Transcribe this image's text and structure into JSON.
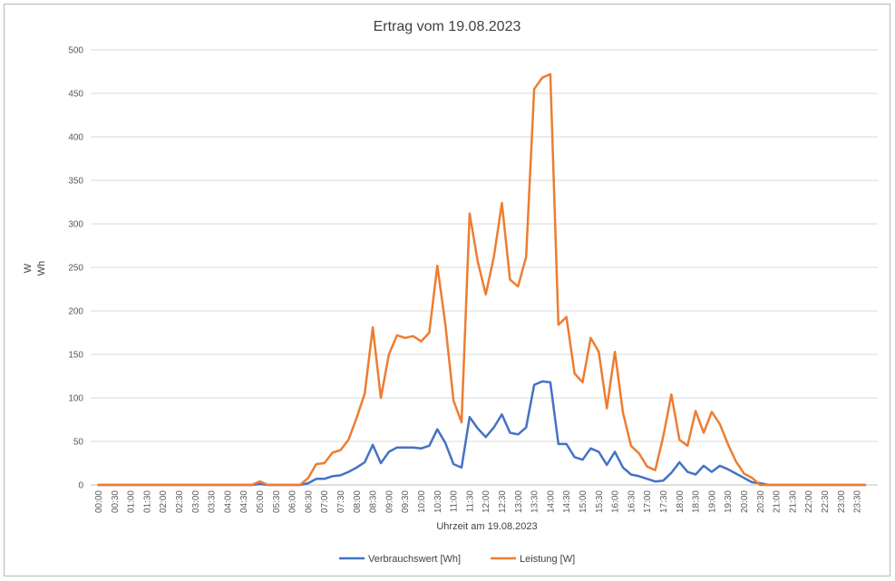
{
  "chart_data": {
    "type": "line",
    "title": "Ertrag vom 19.08.2023",
    "xlabel": "Uhrzeit am 19.08.2023",
    "ylabel_lines": [
      "W",
      "Wh"
    ],
    "ylim": [
      0,
      500
    ],
    "yticks": [
      0,
      50,
      100,
      150,
      200,
      250,
      300,
      350,
      400,
      450,
      500
    ],
    "grid": true,
    "legend_position": "bottom",
    "x_tick_labels": [
      "00:00",
      "00:30",
      "01:00",
      "01:30",
      "02:00",
      "02:30",
      "03:00",
      "03:30",
      "04:00",
      "04:30",
      "05:00",
      "05:30",
      "06:00",
      "06:30",
      "07:00",
      "07:30",
      "08:00",
      "08:30",
      "09:00",
      "09:30",
      "10:00",
      "10:30",
      "11:00",
      "11:30",
      "12:00",
      "12:30",
      "13:00",
      "13:30",
      "14:00",
      "14:30",
      "15:00",
      "15:30",
      "16:00",
      "16:30",
      "17:00",
      "17:30",
      "18:00",
      "18:30",
      "19:00",
      "19:30",
      "20:00",
      "20:30",
      "21:00",
      "21:30",
      "22:00",
      "22:30",
      "23:00",
      "23:30"
    ],
    "x": [
      "00:00",
      "00:15",
      "00:30",
      "00:45",
      "01:00",
      "01:15",
      "01:30",
      "01:45",
      "02:00",
      "02:15",
      "02:30",
      "02:45",
      "03:00",
      "03:15",
      "03:30",
      "03:45",
      "04:00",
      "04:15",
      "04:30",
      "04:45",
      "05:00",
      "05:15",
      "05:30",
      "05:45",
      "06:00",
      "06:15",
      "06:30",
      "06:45",
      "07:00",
      "07:15",
      "07:30",
      "07:45",
      "08:00",
      "08:15",
      "08:30",
      "08:45",
      "09:00",
      "09:15",
      "09:30",
      "09:45",
      "10:00",
      "10:15",
      "10:30",
      "10:45",
      "11:00",
      "11:15",
      "11:30",
      "11:45",
      "12:00",
      "12:15",
      "12:30",
      "12:45",
      "13:00",
      "13:15",
      "13:30",
      "13:45",
      "14:00",
      "14:15",
      "14:30",
      "14:45",
      "15:00",
      "15:15",
      "15:30",
      "15:45",
      "16:00",
      "16:15",
      "16:30",
      "16:45",
      "17:00",
      "17:15",
      "17:30",
      "17:45",
      "18:00",
      "18:15",
      "18:30",
      "18:45",
      "19:00",
      "19:15",
      "19:30",
      "19:45",
      "20:00",
      "20:15",
      "20:30",
      "20:45",
      "21:00",
      "21:15",
      "21:30",
      "21:45",
      "22:00",
      "22:15",
      "22:30",
      "22:45",
      "23:00",
      "23:15",
      "23:30",
      "23:45"
    ],
    "series": [
      {
        "name": "Verbrauchswert [Wh]",
        "color": "#4472c4",
        "values": [
          0,
          0,
          0,
          0,
          0,
          0,
          0,
          0,
          0,
          0,
          0,
          0,
          0,
          0,
          0,
          0,
          0,
          0,
          0,
          0,
          1,
          0,
          0,
          0,
          0,
          0,
          2,
          7,
          7,
          10,
          11,
          15,
          20,
          26,
          46,
          25,
          38,
          43,
          43,
          43,
          42,
          45,
          64,
          48,
          24,
          20,
          78,
          65,
          55,
          66,
          81,
          60,
          58,
          66,
          115,
          119,
          118,
          47,
          47,
          32,
          29,
          42,
          38,
          23,
          38,
          20,
          12,
          10,
          7,
          4,
          5,
          14,
          26,
          15,
          12,
          22,
          15,
          22,
          18,
          13,
          8,
          3,
          2,
          0,
          0,
          0,
          0,
          0,
          0,
          0,
          0,
          0,
          0,
          0,
          0,
          0
        ]
      },
      {
        "name": "Leistung [W]",
        "color": "#ed7d31",
        "values": [
          0,
          0,
          0,
          0,
          0,
          0,
          0,
          0,
          0,
          0,
          0,
          0,
          0,
          0,
          0,
          0,
          0,
          0,
          0,
          0,
          4,
          0,
          0,
          0,
          0,
          0,
          8,
          24,
          25,
          37,
          40,
          52,
          77,
          105,
          181,
          100,
          150,
          172,
          169,
          171,
          165,
          175,
          252,
          184,
          97,
          72,
          312,
          257,
          219,
          262,
          324,
          236,
          228,
          262,
          455,
          468,
          472,
          184,
          193,
          128,
          118,
          169,
          153,
          88,
          153,
          83,
          45,
          36,
          21,
          17,
          56,
          104,
          52,
          45,
          85,
          60,
          84,
          70,
          47,
          27,
          13,
          8,
          0,
          0,
          0,
          0,
          0,
          0,
          0,
          0,
          0,
          0,
          0,
          0,
          0,
          0
        ]
      }
    ]
  }
}
